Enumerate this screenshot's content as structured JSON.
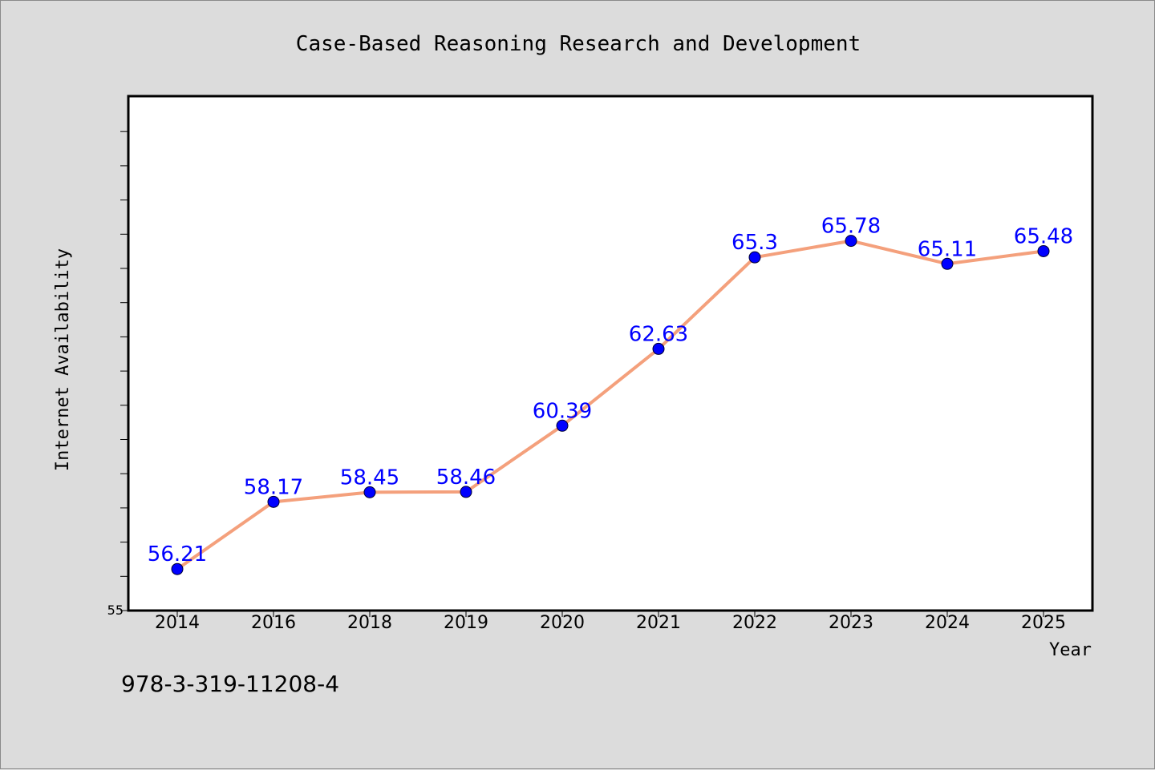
{
  "chart_data": {
    "type": "line",
    "title": "Case-Based Reasoning Research and Development",
    "xlabel": "Year",
    "ylabel": "Internet Availability",
    "categories": [
      "2014",
      "2016",
      "2018",
      "2019",
      "2020",
      "2021",
      "2022",
      "2023",
      "2024",
      "2025"
    ],
    "values": [
      56.21,
      58.17,
      58.45,
      58.46,
      60.39,
      62.63,
      65.3,
      65.78,
      65.11,
      65.48
    ],
    "data_labels": [
      "56.21",
      "58.17",
      "58.45",
      "58.46",
      "60.39",
      "62.63",
      "65.3",
      "65.78",
      "65.11",
      "65.48"
    ],
    "ylim": [
      55,
      70
    ],
    "y_tick_label": "55",
    "grid": false,
    "legend": "none",
    "line_color": "#f4a07c",
    "marker_color": "#0000ff",
    "label_color": "#0000ff"
  },
  "footer": {
    "isbn": "978-3-319-11208-4"
  }
}
